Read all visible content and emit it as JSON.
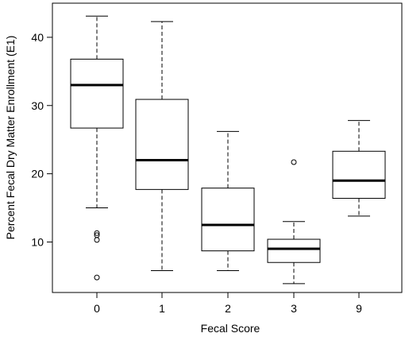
{
  "chart_data": {
    "type": "boxplot",
    "title": "",
    "xlabel": "Fecal Score",
    "ylabel": "Percent Fecal Dry Matter Enrollment (E1)",
    "categories": [
      "0",
      "1",
      "2",
      "3",
      "9"
    ],
    "yticks": [
      10,
      20,
      30,
      40
    ],
    "ylim": [
      2.6,
      45.0
    ],
    "grid": false,
    "boxes": [
      {
        "category": "0",
        "whisker_low": 15.0,
        "q1": 26.7,
        "median": 33.0,
        "q3": 36.8,
        "whisker_high": 43.1,
        "outliers": [
          11.3,
          11.0,
          10.3,
          4.8
        ]
      },
      {
        "category": "1",
        "whisker_low": 5.8,
        "q1": 17.7,
        "median": 22.0,
        "q3": 30.9,
        "whisker_high": 42.3,
        "outliers": []
      },
      {
        "category": "2",
        "whisker_low": 5.8,
        "q1": 8.7,
        "median": 12.5,
        "q3": 17.9,
        "whisker_high": 26.2,
        "outliers": []
      },
      {
        "category": "3",
        "whisker_low": 3.9,
        "q1": 7.0,
        "median": 9.0,
        "q3": 10.4,
        "whisker_high": 13.0,
        "outliers": [
          21.7
        ]
      },
      {
        "category": "9",
        "whisker_low": 13.8,
        "q1": 16.4,
        "median": 19.0,
        "q3": 23.3,
        "whisker_high": 27.8,
        "outliers": []
      }
    ]
  }
}
